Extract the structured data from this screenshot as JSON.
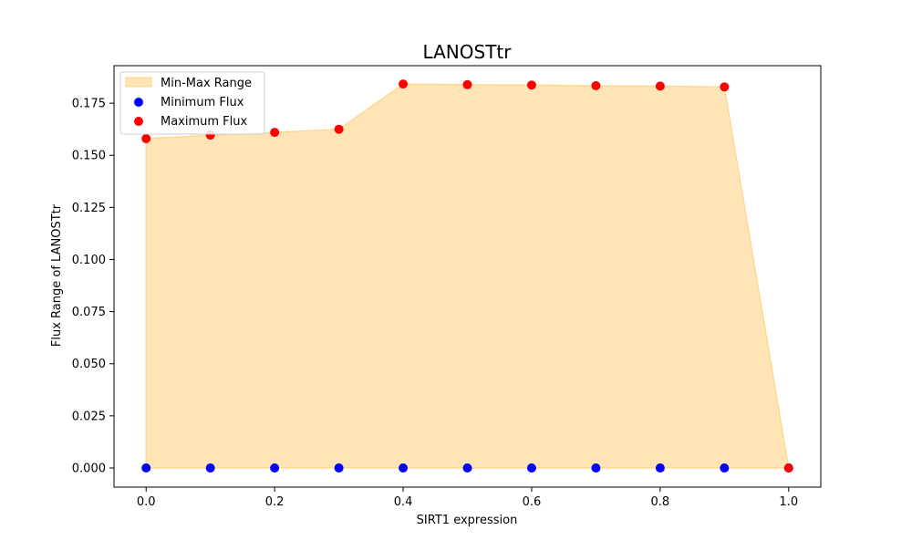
{
  "chart_data": {
    "type": "scatter",
    "title": "LANOSTtr",
    "xlabel": "SIRT1 expression",
    "ylabel": "Flux Range of LANOSTtr",
    "xlim": [
      -0.05,
      1.05
    ],
    "ylim": [
      -0.0092,
      0.193
    ],
    "x": [
      0.0,
      0.1,
      0.2,
      0.3,
      0.4,
      0.5,
      0.6,
      0.7,
      0.8,
      0.9,
      1.0
    ],
    "x_ticks": [
      0.0,
      0.2,
      0.4,
      0.6,
      0.8,
      1.0
    ],
    "x_tick_labels": [
      "0.0",
      "0.2",
      "0.4",
      "0.6",
      "0.8",
      "1.0"
    ],
    "y_ticks": [
      0.0,
      0.025,
      0.05,
      0.075,
      0.1,
      0.125,
      0.15,
      0.175
    ],
    "y_tick_labels": [
      "0.000",
      "0.025",
      "0.050",
      "0.075",
      "0.100",
      "0.125",
      "0.150",
      "0.175"
    ],
    "grid": false,
    "legend_position": "top-left",
    "series": [
      {
        "name": "Min-Max Range",
        "kind": "area",
        "color": "#ffe4b5",
        "edge_color": "#ffd58a"
      },
      {
        "name": "Minimum Flux",
        "kind": "scatter",
        "color": "#0000ff",
        "values": [
          0,
          0,
          0,
          0,
          0,
          0,
          0,
          0,
          0,
          0,
          0
        ]
      },
      {
        "name": "Maximum Flux",
        "kind": "scatter",
        "color": "#ff0000",
        "values": [
          0.158,
          0.1597,
          0.161,
          0.1625,
          0.1842,
          0.1839,
          0.1837,
          0.1834,
          0.1832,
          0.1828,
          0
        ]
      }
    ]
  }
}
